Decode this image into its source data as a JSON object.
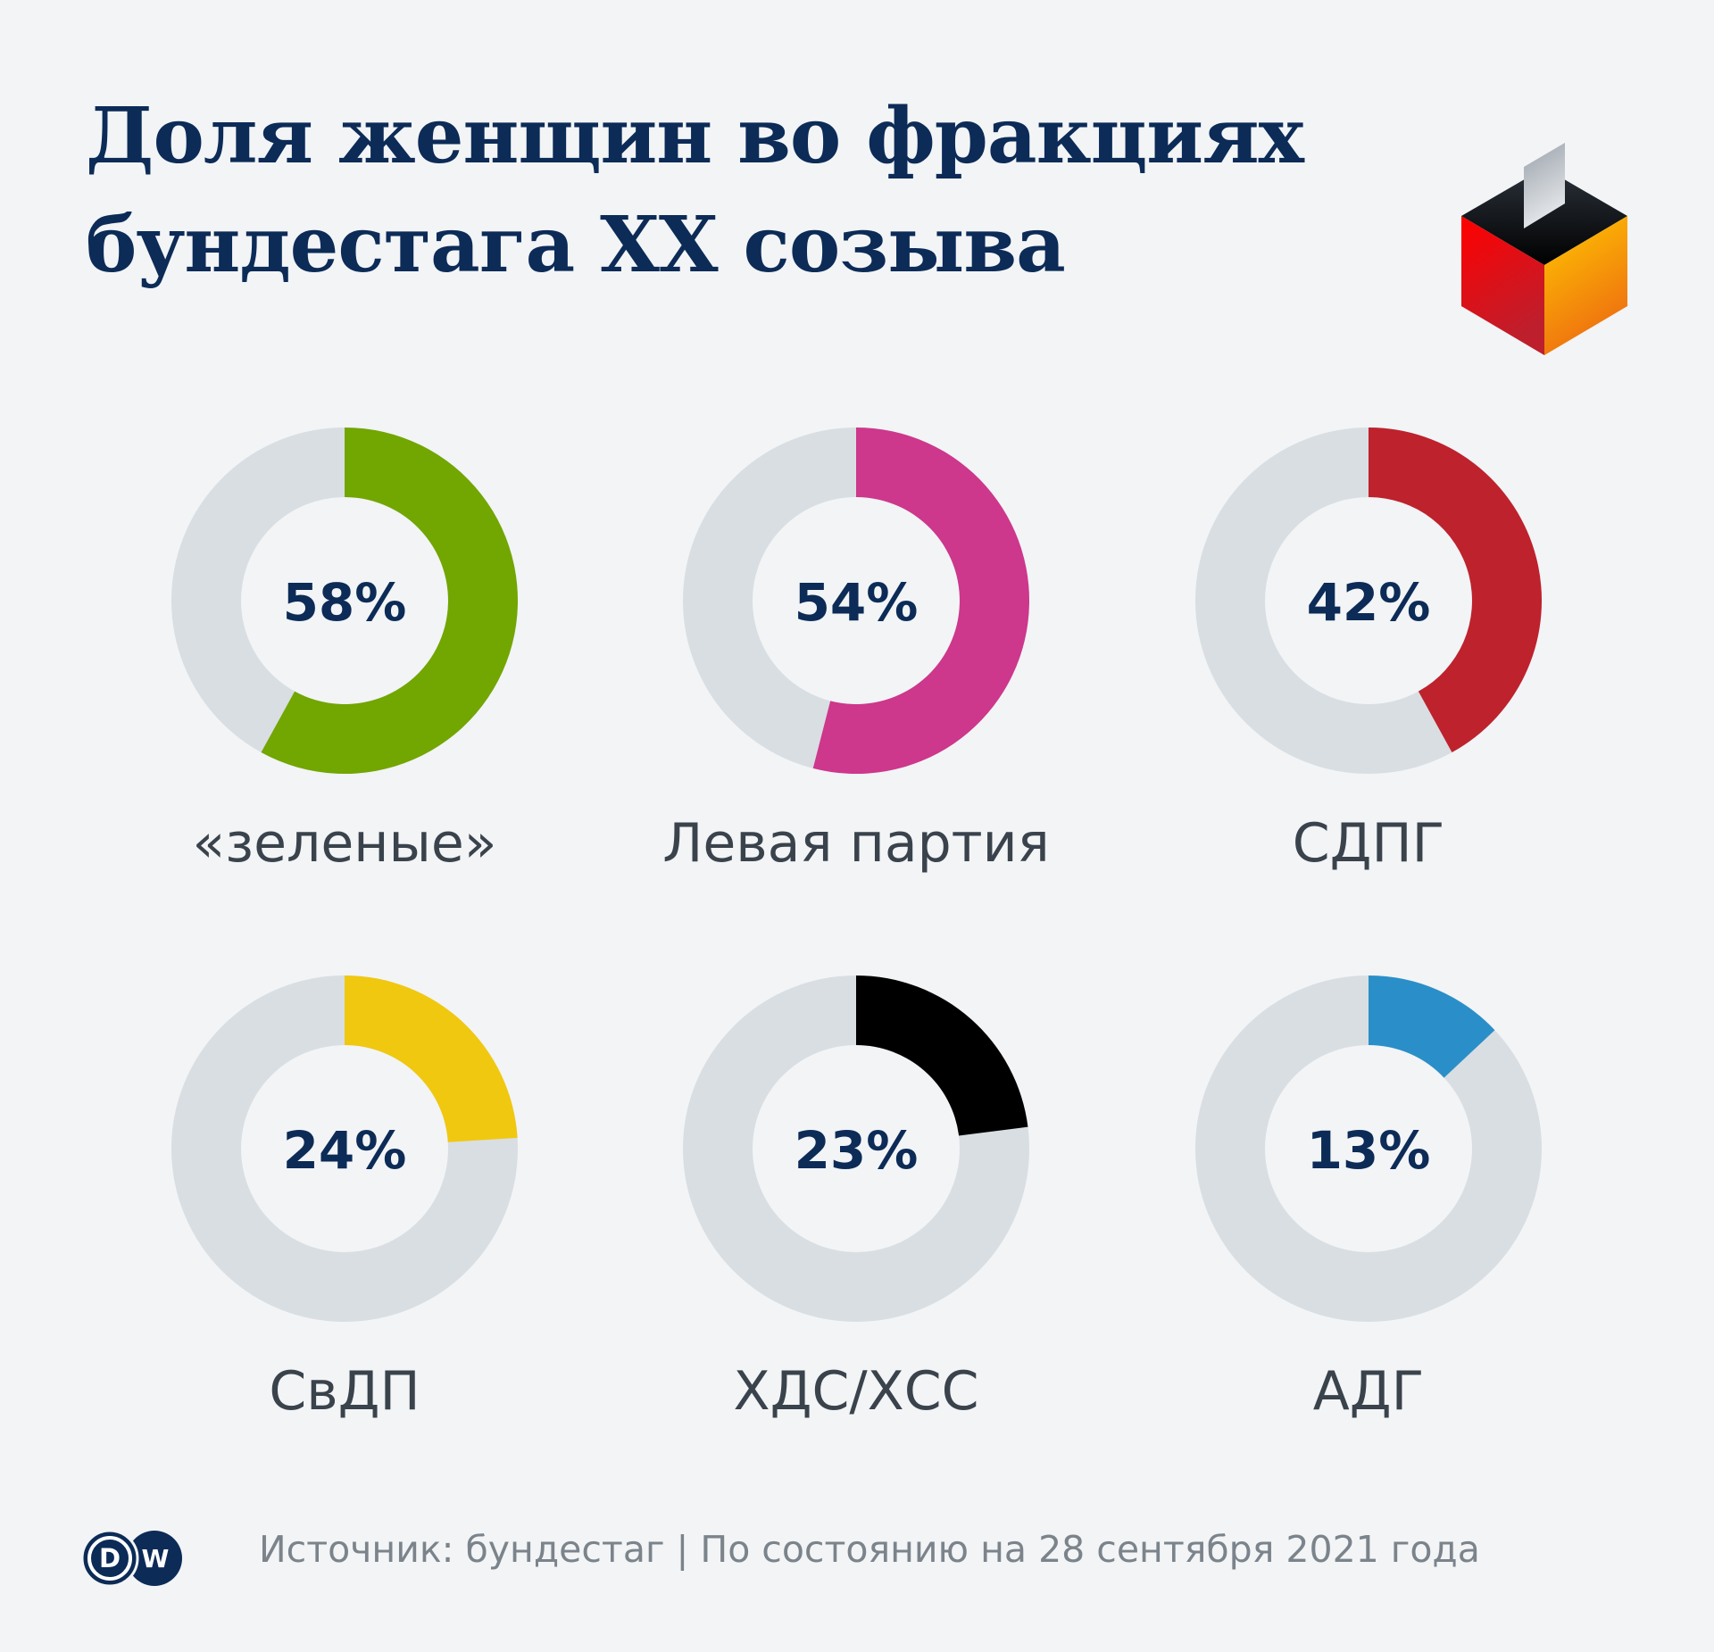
{
  "title": {
    "line1": "Доля женщин во фракциях",
    "line2": "бундестага XX созыва"
  },
  "footer": {
    "text": "Источник: бундестаг | По состоянию на 28 сентября 2021 года"
  },
  "logo": {
    "text": "DW"
  },
  "chart_data": {
    "type": "pie",
    "title": "Доля женщин во фракциях бундестага XX созыва",
    "unit": "%",
    "track_color": "#d9dee2",
    "series": [
      {
        "name": "«зеленые»",
        "value": 58,
        "label": "58%",
        "color": "#72a600"
      },
      {
        "name": "Левая партия",
        "value": 54,
        "label": "54%",
        "color": "#cd378c"
      },
      {
        "name": "СДПГ",
        "value": 42,
        "label": "42%",
        "color": "#be222d"
      },
      {
        "name": "СвДП",
        "value": 24,
        "label": "24%",
        "color": "#f0c80f"
      },
      {
        "name": "ХДС/ХСС",
        "value": 23,
        "label": "23%",
        "color": "#000000"
      },
      {
        "name": "АДГ",
        "value": 13,
        "label": "13%",
        "color": "#2a8fc8"
      }
    ]
  }
}
